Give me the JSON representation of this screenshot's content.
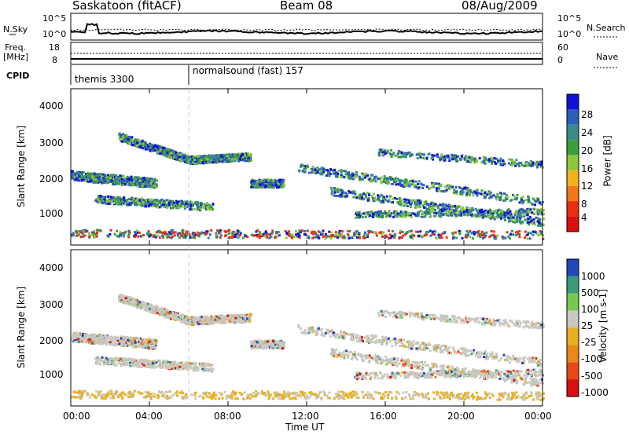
{
  "header": {
    "station": "Saskatoon (fitACF)",
    "beam": "Beam 08",
    "date": "08/Aug/2009"
  },
  "summary": {
    "nsky_label": "N.Sky",
    "nsky_ticks": [
      "10^5",
      "10^0"
    ],
    "nsearch_label": "N.Search",
    "nsearch_ticks": [
      "10^5",
      "10^0"
    ],
    "freq_label": "Freq.",
    "freq_unit": "[MHz]",
    "freq_ticks": [
      "18",
      "8"
    ],
    "nave_label": "Nave",
    "nave_ticks": [
      "60",
      "0"
    ],
    "cpid_label": "CPID",
    "cpid_segments": [
      "themis 3300",
      "normalsound (fast) 157"
    ]
  },
  "chart_data": [
    {
      "type": "heatmap",
      "panel": "power",
      "ylabel": "Slant Range [km]",
      "yticks": [
        "4000",
        "3000",
        "2000",
        "1000"
      ],
      "ylim": [
        180,
        4600
      ],
      "colorbar_label": "Power [dB]",
      "colorbar_ticks": [
        "28",
        "24",
        "20",
        "16",
        "12",
        "8",
        "4"
      ],
      "colors": [
        "#1010d8",
        "#2c5fb8",
        "#3a8a8a",
        "#3c9d3c",
        "#8cc83a",
        "#f2b21c",
        "#f07818",
        "#e83010",
        "#d81010"
      ]
    },
    {
      "type": "heatmap",
      "panel": "velocity",
      "ylabel": "Slant Range [km]",
      "yticks": [
        "4000",
        "3000",
        "2000",
        "1000"
      ],
      "ylim": [
        180,
        4600
      ],
      "colorbar_label": "Velocity [m s-1]",
      "colorbar_ticks": [
        "1000",
        "500",
        "100",
        "25",
        "-25",
        "-100",
        "-500",
        "-1000"
      ],
      "colors": [
        "#2048b8",
        "#3a9a7a",
        "#78c850",
        "#c8c8c0",
        "#e8b020",
        "#e88818",
        "#e84818",
        "#d81010"
      ]
    }
  ],
  "xaxis": {
    "label": "Time UT",
    "ticks": [
      "00:00",
      "04:00",
      "08:00",
      "12:00",
      "16:00",
      "20:00",
      "00:00"
    ]
  }
}
